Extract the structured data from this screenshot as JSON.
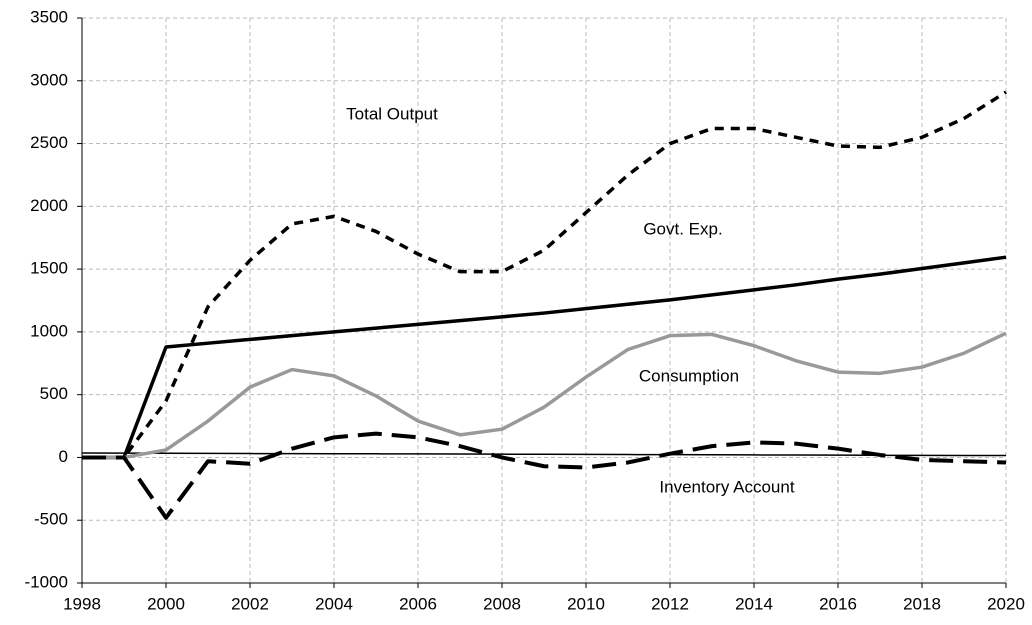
{
  "chart_data": {
    "type": "line",
    "x": [
      1998,
      1999,
      2000,
      2001,
      2002,
      2003,
      2004,
      2005,
      2006,
      2007,
      2008,
      2009,
      2010,
      2011,
      2012,
      2013,
      2014,
      2015,
      2016,
      2017,
      2018,
      2019,
      2020
    ],
    "series": [
      {
        "color": "#000000",
        "linestyle": "solid-thin",
        "values": [
          35,
          34,
          33,
          32,
          31,
          30,
          29,
          29,
          28,
          27,
          26,
          25,
          24,
          23,
          22,
          21,
          20,
          19,
          18,
          17,
          16,
          15,
          15
        ]
      },
      {
        "color": "#000000",
        "linestyle": "short-dash",
        "values": [
          0,
          0,
          450,
          1200,
          1570,
          1860,
          1920,
          1800,
          1620,
          1480,
          1480,
          1650,
          1950,
          2250,
          2500,
          2620,
          2620,
          2550,
          2480,
          2470,
          2550,
          2700,
          2910
        ]
      },
      {
        "color": "#000000",
        "linestyle": "solid",
        "values": [
          0,
          0,
          880,
          910,
          940,
          970,
          1000,
          1030,
          1060,
          1090,
          1120,
          1150,
          1185,
          1220,
          1255,
          1295,
          1335,
          1375,
          1420,
          1460,
          1505,
          1550,
          1595
        ]
      },
      {
        "color": "#999999",
        "linestyle": "solid",
        "values": [
          0,
          0,
          60,
          290,
          560,
          700,
          650,
          490,
          290,
          180,
          225,
          400,
          640,
          860,
          970,
          980,
          890,
          770,
          680,
          670,
          720,
          830,
          990
        ]
      },
      {
        "color": "#000000",
        "linestyle": "long-dash",
        "values": [
          0,
          0,
          -480,
          -30,
          -50,
          70,
          160,
          190,
          160,
          90,
          0,
          -70,
          -80,
          -40,
          30,
          90,
          120,
          110,
          70,
          20,
          -20,
          -30,
          -40
        ]
      }
    ],
    "annotations": [
      "Total Output",
      "Govt. Exp.",
      "Consumption",
      "Inventory Account"
    ],
    "xlim": [
      1998,
      2020
    ],
    "xticks": [
      1998,
      2000,
      2002,
      2004,
      2006,
      2008,
      2010,
      2012,
      2014,
      2016,
      2018,
      2020
    ],
    "ylim": [
      -1000,
      3500
    ],
    "yticks": [
      -1000,
      -500,
      0,
      500,
      1000,
      1500,
      2000,
      2500,
      3000,
      3500
    ],
    "grid": true
  }
}
